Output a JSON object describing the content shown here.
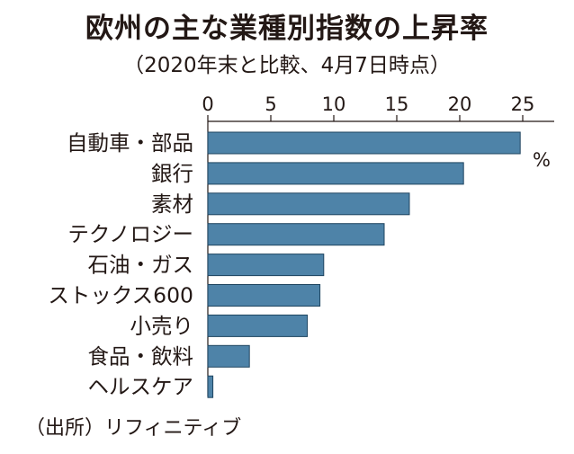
{
  "chart_data": {
    "type": "bar",
    "orientation": "horizontal",
    "title": "欧州の主な業種別指数の上昇率",
    "subtitle": "（2020年末と比較、4月7日時点）",
    "source": "（出所）リフィニティブ",
    "unit": "%",
    "categories": [
      "自動車・部品",
      "銀行",
      "素材",
      "テクノロジー",
      "石油・ガス",
      "ストックス600",
      "小売り",
      "食品・飲料",
      "ヘルスケア"
    ],
    "values": [
      24.8,
      20.3,
      16.0,
      14.0,
      9.2,
      8.9,
      7.9,
      3.3,
      0.4
    ],
    "xlim": [
      0,
      27.5
    ],
    "xticks": [
      "0",
      "5",
      "10",
      "15",
      "20",
      "25"
    ],
    "bar_color": "#4e83a8",
    "grid": false
  }
}
